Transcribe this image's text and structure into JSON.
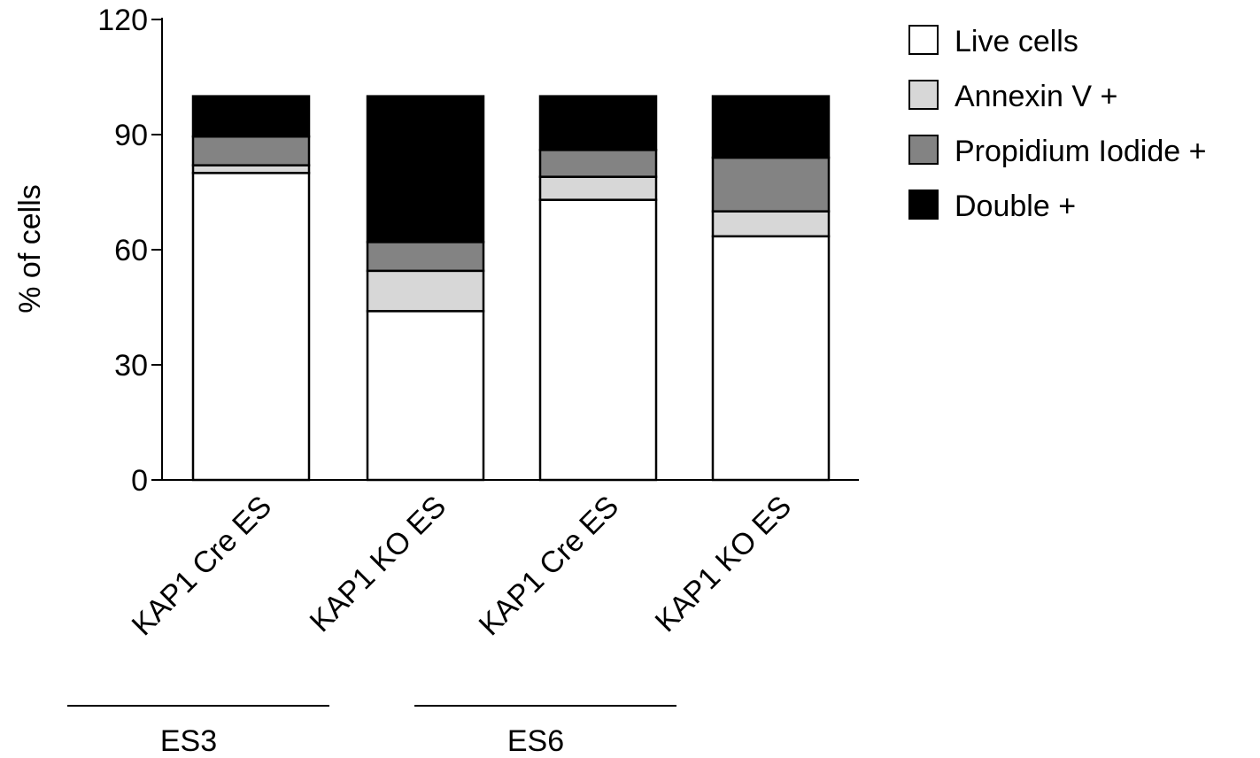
{
  "chart_data": {
    "type": "bar",
    "stacked": true,
    "title": "",
    "ylabel": "% of cells",
    "ylim": [
      0,
      120
    ],
    "yticks": [
      0,
      30,
      60,
      90,
      120
    ],
    "categories": [
      "KAP1 Cre ES",
      "KAP1 KO ES",
      "KAP1 Cre ES",
      "KAP1 KO ES"
    ],
    "groups": [
      {
        "label": "ES3",
        "categories": [
          0,
          1
        ]
      },
      {
        "label": "ES6",
        "categories": [
          2,
          3
        ]
      }
    ],
    "series": [
      {
        "name": "Live cells",
        "color": "#ffffff",
        "values": [
          80,
          44,
          73,
          63.5
        ]
      },
      {
        "name": "Annexin V +",
        "color": "#d7d7d7",
        "values": [
          2,
          10.5,
          6,
          6.5
        ]
      },
      {
        "name": "Propidium Iodide +",
        "color": "#838383",
        "values": [
          7.5,
          7.5,
          7,
          14
        ]
      },
      {
        "name": "Double +",
        "color": "#000000",
        "values": [
          10.5,
          38,
          14,
          16
        ]
      }
    ],
    "legend_position": "top-right",
    "grid": false
  }
}
